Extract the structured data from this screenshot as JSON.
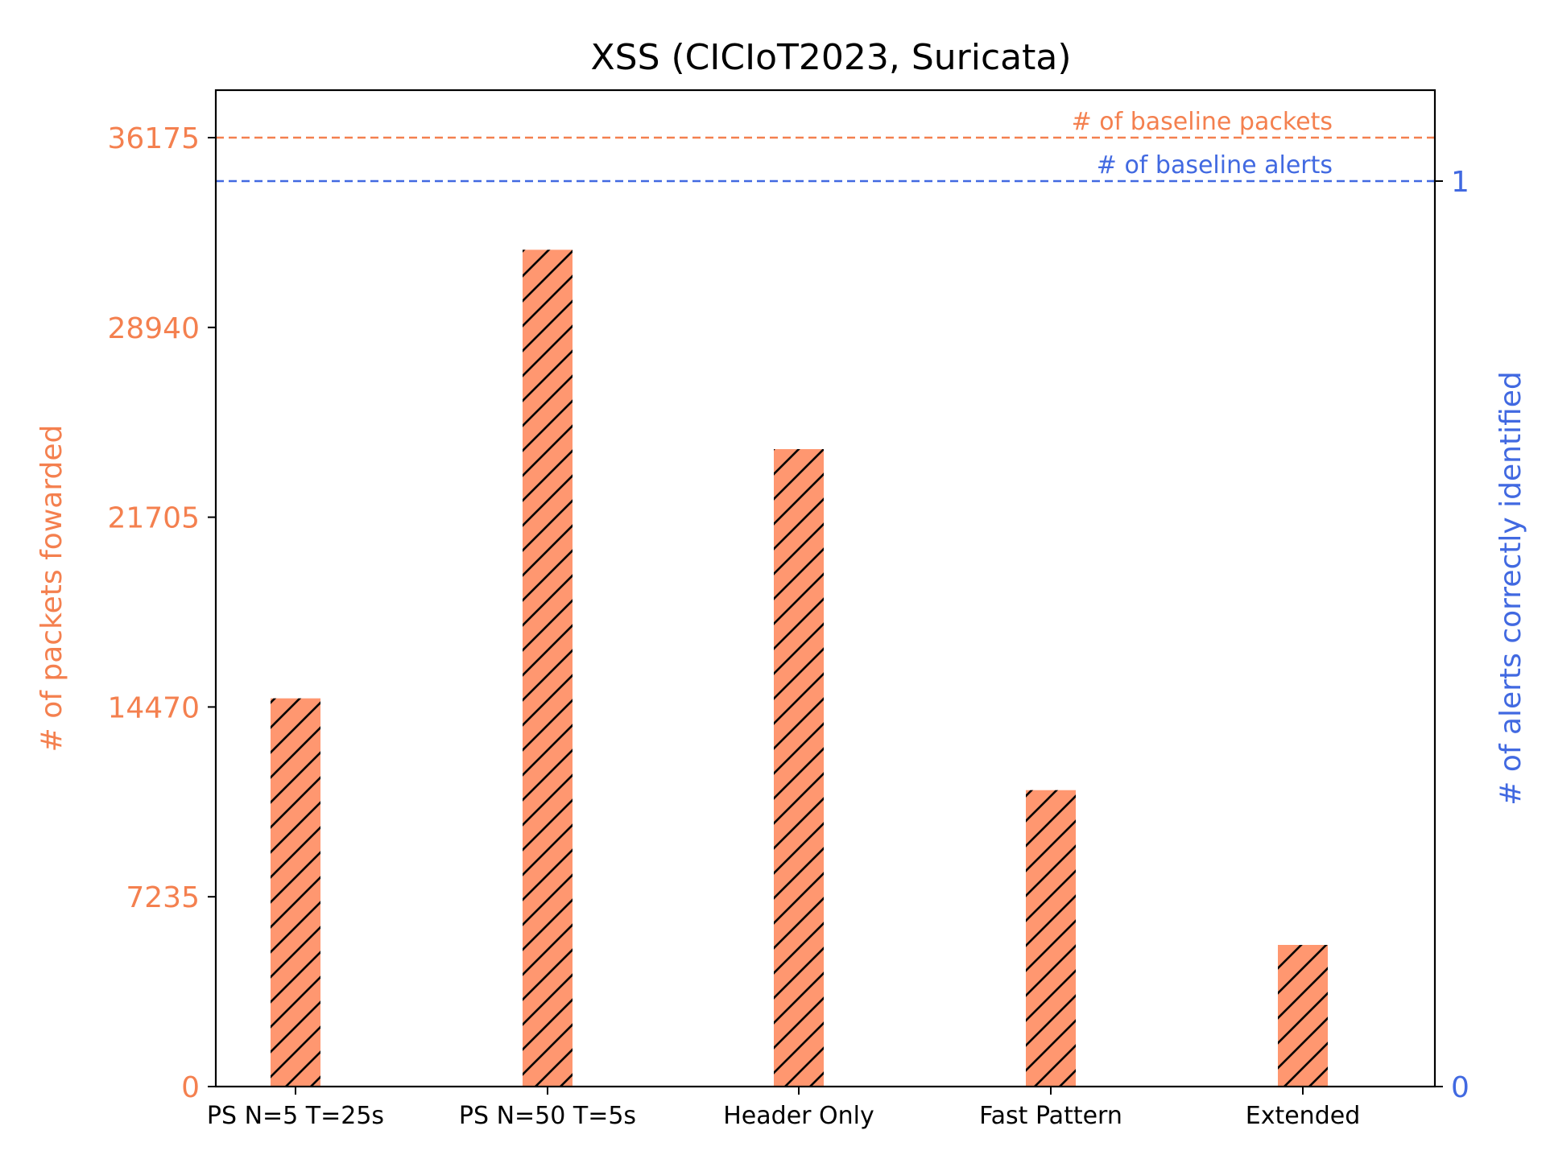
{
  "chart_data": {
    "type": "bar",
    "title": "XSS (CICIoT2023, Suricata)",
    "categories": [
      "PS N=5 T=25s",
      "PS N=50 T=5s",
      "Header Only",
      "Fast Pattern",
      "Extended"
    ],
    "series": [
      {
        "axis": "left",
        "color": "#ff9770",
        "hatch": "diagonal",
        "values": [
          14800,
          31900,
          24300,
          11300,
          5400
        ]
      }
    ],
    "y_left": {
      "label": "# of packets fowarded",
      "color": "#f4804f",
      "range": [
        0,
        36175
      ],
      "ticks": [
        0,
        7235,
        14470,
        21705,
        28940,
        36175
      ]
    },
    "y_right": {
      "label": "# of alerts correctly identified",
      "color": "#4169e1",
      "range": [
        0,
        1
      ],
      "ticks": [
        0,
        1
      ]
    },
    "reference_lines": [
      {
        "axis": "left",
        "value": 36175,
        "label": "# of baseline packets",
        "color": "#f4804f",
        "style": "dashed"
      },
      {
        "axis": "right",
        "value": 1,
        "label": "# of baseline alerts",
        "color": "#4169e1",
        "style": "dashed"
      }
    ],
    "grid": false,
    "legend": "none"
  }
}
